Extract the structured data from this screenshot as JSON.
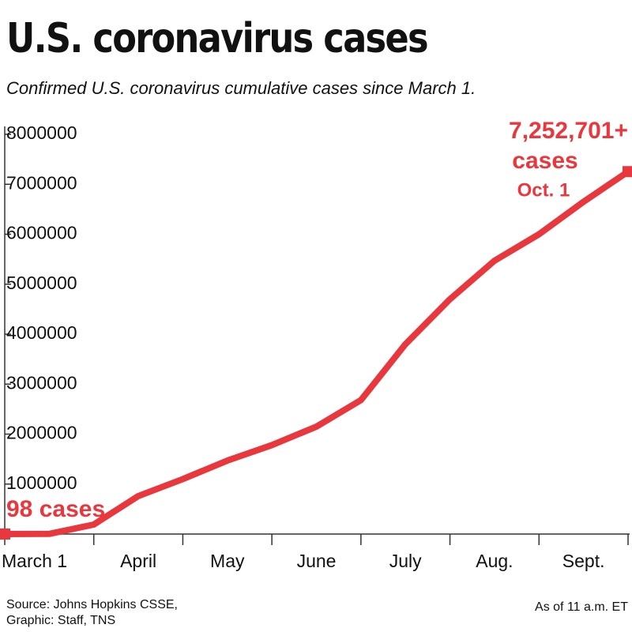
{
  "chart_data": {
    "type": "line",
    "title": "U.S. coronavirus cases",
    "subtitle": "Confirmed U.S. coronavirus cumulative cases since March 1.",
    "x_start_label": "March 1",
    "categories": [
      "April",
      "May",
      "June",
      "July",
      "Aug.",
      "Sept."
    ],
    "x": [
      0,
      0.5,
      1,
      1.5,
      2,
      2.5,
      3,
      3.5,
      4,
      4.5,
      5,
      5.5,
      6,
      6.5,
      7
    ],
    "series": [
      {
        "name": "Cumulative cases",
        "color": "#e8383d",
        "values": [
          98,
          3000,
          190000,
          760000,
          1100000,
          1470000,
          1780000,
          2150000,
          2680000,
          3800000,
          4700000,
          5470000,
          6000000,
          6650000,
          7252701
        ]
      }
    ],
    "xlim": [
      0,
      7
    ],
    "xticks": [
      0,
      1,
      2,
      3,
      4,
      5,
      6,
      7
    ],
    "ylim": [
      0,
      8000000
    ],
    "yticks": [
      1000000,
      2000000,
      3000000,
      4000000,
      5000000,
      6000000,
      7000000,
      8000000
    ],
    "annotations": [
      "7,252,701+",
      "cases",
      "Oct. 1",
      "98 cases"
    ],
    "source": [
      "Source: Johns Hopkins CSSE,",
      "Graphic: Staff, TNS"
    ],
    "note": "As of 11 a.m. ET"
  }
}
